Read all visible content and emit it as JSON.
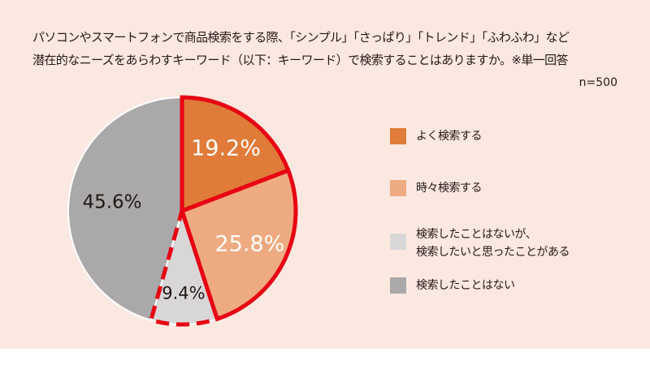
{
  "title": {
    "line1": "パソコンやスマートフォンで商品検索をする際、「シンプル」「さっぱり」「トレンド」「ふわふわ」など",
    "line2": "潜在的なニーズをあらわすキーワード（以下：キーワード）で検索することはありますか。※単一回答"
  },
  "sample_size": "n=500",
  "colors": {
    "background": "#fbe9e1",
    "highlight_border": "#e60012",
    "slice_border": "#ffffff"
  },
  "chart_data": {
    "type": "pie",
    "start_angle_deg": 0,
    "direction": "clockwise",
    "slices": [
      {
        "label": "よく検索する",
        "label_lines": [
          "よく検索する"
        ],
        "value": 19.2,
        "value_label": "19.2%",
        "color": "#e07b39",
        "text_color": "#ffffff",
        "highlighted": true
      },
      {
        "label": "時々検索する",
        "label_lines": [
          "時々検索する"
        ],
        "value": 25.8,
        "value_label": "25.8%",
        "color": "#eeaa80",
        "text_color": "#ffffff",
        "highlighted": true
      },
      {
        "label": "検索したことはないが、検索したいと思ったことがある",
        "label_lines": [
          "検索したことはないが、",
          "検索したいと思ったことがある"
        ],
        "value": 9.4,
        "value_label": "9.4%",
        "color": "#d9d6d7",
        "text_color": "#231815",
        "highlighted": true,
        "dashed_border": true
      },
      {
        "label": "検索したことはない",
        "label_lines": [
          "検索したことはない"
        ],
        "value": 45.6,
        "value_label": "45.6%",
        "color": "#aba8a9",
        "text_color": "#231815",
        "highlighted": false
      }
    ]
  }
}
